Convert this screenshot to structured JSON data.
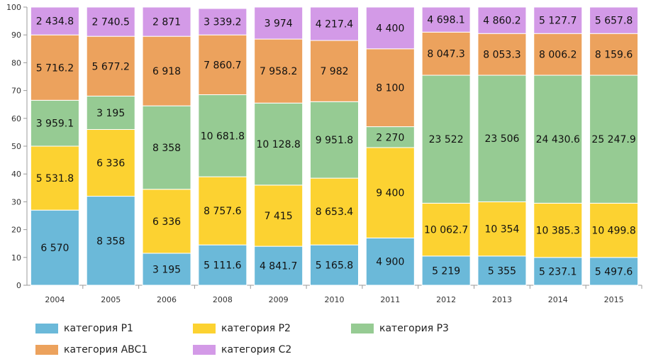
{
  "chart_data": {
    "type": "bar",
    "stacked": true,
    "categories": [
      "2004",
      "2005",
      "2006",
      "2008",
      "2009",
      "2010",
      "2011",
      "2012",
      "2013",
      "2014",
      "2015"
    ],
    "ylim": [
      0,
      100
    ],
    "yticks": [
      "0",
      "10",
      "20",
      "30",
      "40",
      "50",
      "60",
      "70",
      "80",
      "90",
      "100"
    ],
    "series": [
      {
        "name": "категория P1",
        "color": "#6bb9d9",
        "values": [
          27,
          32,
          11.5,
          14.5,
          14,
          14.5,
          17,
          10.5,
          10.5,
          10,
          10
        ],
        "labels": [
          "6 570",
          "8 358",
          "3 195",
          "5 111.6",
          "4 841.7",
          "5 165.8",
          "4 900",
          "5 219",
          "5 355",
          "5 237.1",
          "5 497.6"
        ]
      },
      {
        "name": "категория P2",
        "color": "#fcd231",
        "values": [
          23,
          24,
          23,
          24.5,
          22,
          24,
          32.5,
          19,
          19.5,
          19.5,
          19.5
        ],
        "labels": [
          "5 531.8",
          "6 336",
          "6 336",
          "8 757.6",
          "7 415",
          "8 653.4",
          "9 400",
          "10 062.7",
          "10 354",
          "10 385.3",
          "10 499.8"
        ]
      },
      {
        "name": "категория P3",
        "color": "#96cb93",
        "values": [
          16.5,
          12,
          30,
          29.5,
          29.5,
          27.5,
          7.5,
          46,
          45.5,
          46,
          46
        ],
        "labels": [
          "3 959.1",
          "3 195",
          "8 358",
          "10 681.8",
          "10 128.8",
          "9 951.8",
          "2 270",
          "23 522",
          "23 506",
          "24 430.6",
          "25 247.9"
        ]
      },
      {
        "name": "категория ABC1",
        "color": "#eca25d",
        "values": [
          23.5,
          21.5,
          25,
          21.5,
          23,
          22,
          28,
          15.5,
          15,
          15,
          15
        ],
        "labels": [
          "5 716.2",
          "5 677.2",
          "6 918",
          "7 860.7",
          "7 958.2",
          "7 982",
          "8 100",
          "8 047.3",
          "8 053.3",
          "8 006.2",
          "8 159.6"
        ]
      },
      {
        "name": "категория C2",
        "color": "#d39ae7",
        "values": [
          10,
          10.5,
          10.5,
          9.5,
          11.5,
          12,
          15,
          9,
          9.5,
          9.5,
          9.5
        ],
        "labels": [
          "2 434.8",
          "2 740.5",
          "2 871",
          "3 339.2",
          "3 974",
          "4 217.4",
          "4 400",
          "4 698.1",
          "4 860.2",
          "5 127.7",
          "5 657.8"
        ]
      }
    ]
  }
}
